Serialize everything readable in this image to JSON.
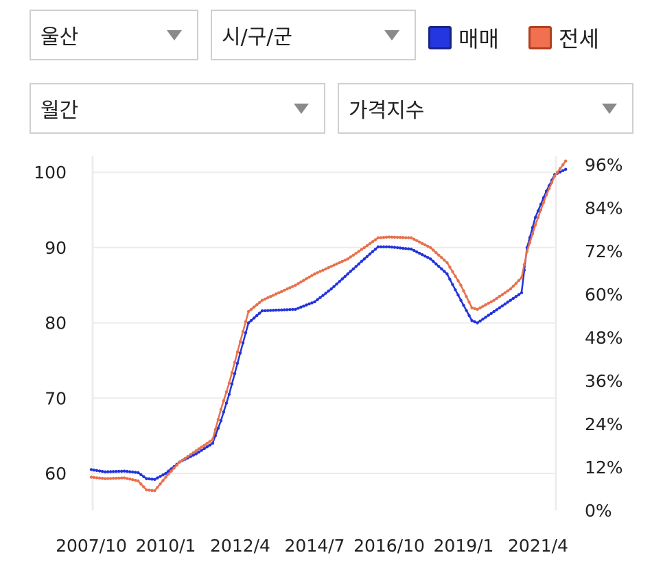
{
  "filters": {
    "region": "울산",
    "district": "시/구/군",
    "period": "월간",
    "metric": "가격지수"
  },
  "legend": [
    {
      "label": "매매",
      "color": "#2336e0",
      "border": "#1a237e"
    },
    {
      "label": "전세",
      "color": "#f07050",
      "border": "#b04020"
    }
  ],
  "chart_data": {
    "type": "line",
    "title": "",
    "xlabel": "",
    "ylabel": "",
    "x_ticks": [
      "2007/10",
      "2010/1",
      "2012/4",
      "2014/7",
      "2016/10",
      "2019/1",
      "2021/4"
    ],
    "y_ticks": [
      "60",
      "70",
      "80",
      "90",
      "100"
    ],
    "y_ticks_right": [
      "0%",
      "12%",
      "24%",
      "36%",
      "48%",
      "60%",
      "72%",
      "84%",
      "96%"
    ],
    "ylim": [
      55,
      100
    ],
    "y2lim": [
      0,
      96
    ],
    "grid": true,
    "x_start": "2007/10",
    "series": [
      {
        "name": "매매",
        "color": "#2233dd",
        "points": [
          [
            "2007/10",
            60.5
          ],
          [
            "2008/3",
            60.2
          ],
          [
            "2008/10",
            60.3
          ],
          [
            "2009/3",
            60.1
          ],
          [
            "2009/6",
            59.3
          ],
          [
            "2009/9",
            59.2
          ],
          [
            "2010/1",
            60.0
          ],
          [
            "2010/6",
            61.5
          ],
          [
            "2010/12",
            62.6
          ],
          [
            "2011/6",
            64.0
          ],
          [
            "2011/9",
            67.0
          ],
          [
            "2011/12",
            70.5
          ],
          [
            "2012/4",
            76.0
          ],
          [
            "2012/7",
            80.0
          ],
          [
            "2012/12",
            81.6
          ],
          [
            "2013/6",
            81.7
          ],
          [
            "2013/12",
            81.8
          ],
          [
            "2014/7",
            82.8
          ],
          [
            "2015/1",
            84.5
          ],
          [
            "2015/7",
            86.5
          ],
          [
            "2016/1",
            88.5
          ],
          [
            "2016/6",
            90.1
          ],
          [
            "2016/10",
            90.1
          ],
          [
            "2017/6",
            89.8
          ],
          [
            "2018/1",
            88.5
          ],
          [
            "2018/7",
            86.5
          ],
          [
            "2018/12",
            83.0
          ],
          [
            "2019/4",
            80.3
          ],
          [
            "2019/6",
            80.0
          ],
          [
            "2019/12",
            81.5
          ],
          [
            "2020/6",
            83.0
          ],
          [
            "2020/10",
            84.0
          ],
          [
            "2020/12",
            90.0
          ],
          [
            "2021/3",
            94.0
          ],
          [
            "2021/7",
            97.5
          ],
          [
            "2021/10",
            99.7
          ],
          [
            "2022/2",
            100.4
          ]
        ]
      },
      {
        "name": "전세",
        "color": "#e8704c",
        "points": [
          [
            "2007/10",
            59.5
          ],
          [
            "2008/3",
            59.3
          ],
          [
            "2008/10",
            59.4
          ],
          [
            "2009/3",
            59.0
          ],
          [
            "2009/6",
            57.8
          ],
          [
            "2009/9",
            57.7
          ],
          [
            "2010/1",
            59.5
          ],
          [
            "2010/6",
            61.5
          ],
          [
            "2010/12",
            63.0
          ],
          [
            "2011/6",
            64.5
          ],
          [
            "2011/9",
            68.5
          ],
          [
            "2011/12",
            72.0
          ],
          [
            "2012/4",
            77.5
          ],
          [
            "2012/7",
            81.5
          ],
          [
            "2012/12",
            83.0
          ],
          [
            "2013/6",
            84.0
          ],
          [
            "2013/12",
            85.0
          ],
          [
            "2014/7",
            86.5
          ],
          [
            "2015/1",
            87.5
          ],
          [
            "2015/7",
            88.5
          ],
          [
            "2016/1",
            90.0
          ],
          [
            "2016/6",
            91.3
          ],
          [
            "2016/10",
            91.4
          ],
          [
            "2017/6",
            91.3
          ],
          [
            "2018/1",
            90.0
          ],
          [
            "2018/7",
            88.0
          ],
          [
            "2018/12",
            85.0
          ],
          [
            "2019/4",
            82.0
          ],
          [
            "2019/6",
            81.8
          ],
          [
            "2019/12",
            83.0
          ],
          [
            "2020/6",
            84.5
          ],
          [
            "2020/10",
            86.0
          ],
          [
            "2020/12",
            89.5
          ],
          [
            "2021/3",
            93.0
          ],
          [
            "2021/7",
            97.0
          ],
          [
            "2021/10",
            99.5
          ],
          [
            "2022/2",
            101.5
          ]
        ]
      }
    ]
  }
}
